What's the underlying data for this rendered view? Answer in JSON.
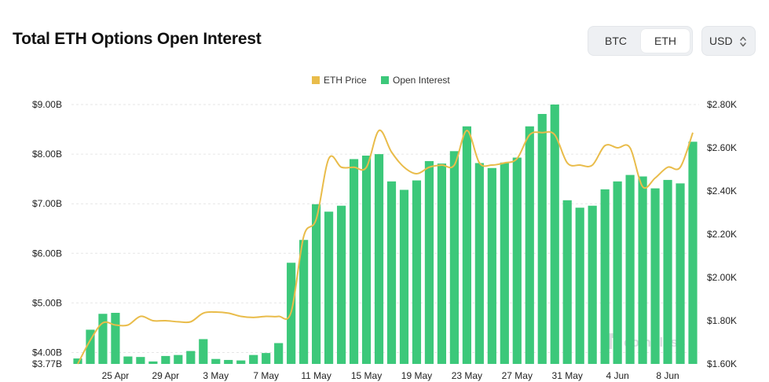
{
  "header": {
    "title": "Total ETH Options Open Interest",
    "asset_options": [
      "BTC",
      "ETH"
    ],
    "selected_asset": "ETH",
    "currency": "USD"
  },
  "watermark": "coinglass",
  "colors": {
    "bar": "#3cc87a",
    "price": "#e9bc4a",
    "grid": "#e6e6e6"
  },
  "chart_data": {
    "type": "bar",
    "title": "Total ETH Options Open Interest",
    "legend": [
      "ETH Price",
      "Open Interest"
    ],
    "legend_position": "top-center",
    "x_tick_labels": [
      "25 Apr",
      "29 Apr",
      "3 May",
      "7 May",
      "11 May",
      "15 May",
      "19 May",
      "23 May",
      "27 May",
      "31 May",
      "4 Jun",
      "8 Jun"
    ],
    "x_tick_indices": [
      3,
      7,
      11,
      15,
      19,
      23,
      27,
      31,
      35,
      39,
      43,
      47
    ],
    "y_left": {
      "label": "Open Interest",
      "min": 3.77,
      "max": 9.0,
      "ticks": [
        4.0,
        5.0,
        6.0,
        7.0,
        8.0,
        9.0
      ],
      "tick_labels": [
        "$4.00B",
        "$5.00B",
        "$6.00B",
        "$7.00B",
        "$8.00B",
        "$9.00B"
      ],
      "min_label": "$3.77B"
    },
    "y_right": {
      "label": "ETH Price",
      "min": 1600,
      "max": 2800,
      "ticks": [
        1600,
        1800,
        2000,
        2200,
        2400,
        2600,
        2800
      ],
      "tick_labels": [
        "$1.60K",
        "$1.80K",
        "$2.00K",
        "$2.20K",
        "$2.40K",
        "$2.60K",
        "$2.80K"
      ]
    },
    "series": [
      {
        "name": "Open Interest",
        "type": "bar",
        "axis": "left",
        "unit": "B USD",
        "values": [
          3.88,
          4.46,
          4.78,
          4.8,
          3.92,
          3.91,
          3.82,
          3.93,
          3.95,
          4.03,
          4.27,
          3.87,
          3.85,
          3.84,
          3.95,
          3.99,
          4.19,
          5.81,
          6.27,
          6.99,
          6.84,
          6.96,
          7.9,
          7.97,
          8.0,
          7.45,
          7.28,
          7.47,
          7.86,
          7.81,
          8.06,
          8.56,
          7.82,
          7.72,
          7.83,
          7.93,
          8.56,
          8.81,
          9.0,
          7.07,
          6.92,
          6.96,
          7.29,
          7.45,
          7.58,
          7.55,
          7.31,
          7.48,
          7.41,
          8.25
        ]
      },
      {
        "name": "ETH Price",
        "type": "line",
        "axis": "right",
        "unit": "USD",
        "values": [
          1600,
          1710,
          1790,
          1780,
          1780,
          1820,
          1800,
          1800,
          1795,
          1795,
          1835,
          1840,
          1835,
          1820,
          1815,
          1820,
          1820,
          1840,
          2190,
          2270,
          2550,
          2510,
          2510,
          2510,
          2680,
          2580,
          2510,
          2480,
          2510,
          2520,
          2520,
          2680,
          2530,
          2520,
          2530,
          2550,
          2660,
          2670,
          2660,
          2530,
          2520,
          2520,
          2610,
          2600,
          2600,
          2420,
          2460,
          2510,
          2510,
          2670
        ]
      }
    ]
  }
}
